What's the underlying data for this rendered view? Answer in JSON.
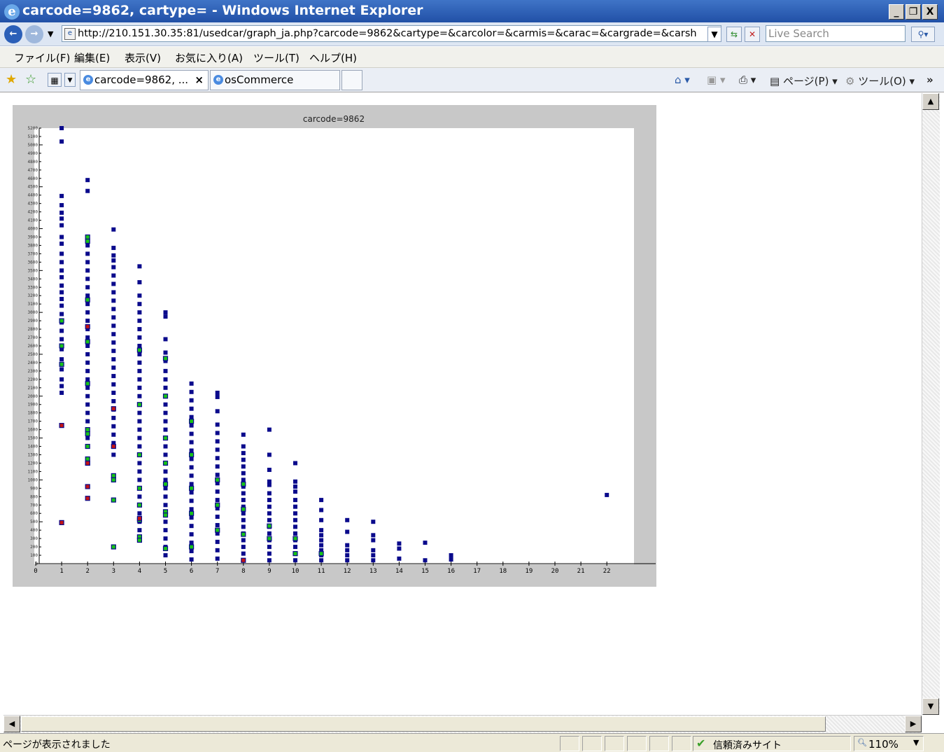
{
  "window": {
    "title": "carcode=9862, cartype= - Windows Internet Explorer",
    "minimize": "_",
    "restore": "&#x25A1;",
    "close": "X"
  },
  "addressbar": {
    "url": "http://210.151.30.35:81/usedcar/graph_ja.php?carcode=9862&cartype=&carcolor=&carmis=&carac=&cargrade=&carsh",
    "search_placeholder": "Live Search"
  },
  "menu": {
    "items": [
      "ファイル(F)",
      "編集(E)",
      "表示(V)",
      "お気に入り(A)",
      "ツール(T)",
      "ヘルプ(H)"
    ]
  },
  "tabs": [
    {
      "label": "carcode=9862, ..."
    },
    {
      "label": "osCommerce"
    }
  ],
  "commandbar": {
    "page_label": "ページ(P)",
    "tools_label": "ツール(O)"
  },
  "status": {
    "text": "ページが表示されました",
    "zone": "信頼済みサイト",
    "zoom": "110%"
  },
  "colors": {
    "point_blue": "#0a0a8c",
    "point_green": "#17c317",
    "point_red": "#c41414",
    "plot_frame": "#c8c8c8"
  },
  "chart_data": {
    "type": "scatter",
    "title": "carcode=9862",
    "xlabel": "",
    "ylabel": "",
    "xlim": [
      0,
      22
    ],
    "ylim": [
      0,
      5200
    ],
    "x_ticks": [
      "0",
      "1",
      "2",
      "3",
      "4",
      "5",
      "6",
      "7",
      "8",
      "9",
      "10",
      "11",
      "12",
      "13",
      "14",
      "15",
      "16",
      "17",
      "18",
      "19",
      "20",
      "21",
      "22"
    ],
    "series": [
      {
        "color": "blue",
        "points": [
          [
            1,
            5200
          ],
          [
            1,
            5040
          ],
          [
            1,
            4390
          ],
          [
            1,
            4280
          ],
          [
            1,
            4190
          ],
          [
            1,
            4120
          ],
          [
            1,
            4040
          ],
          [
            1,
            3900
          ],
          [
            1,
            3820
          ],
          [
            1,
            3700
          ],
          [
            1,
            3600
          ],
          [
            1,
            3500
          ],
          [
            1,
            3420
          ],
          [
            1,
            3320
          ],
          [
            1,
            3240
          ],
          [
            1,
            3160
          ],
          [
            1,
            3080
          ],
          [
            1,
            2980
          ],
          [
            1,
            2880
          ],
          [
            1,
            2780
          ],
          [
            1,
            2680
          ],
          [
            1,
            2560
          ],
          [
            1,
            2440
          ],
          [
            1,
            2320
          ],
          [
            1,
            2200
          ],
          [
            1,
            2120
          ],
          [
            1,
            2040
          ],
          [
            2,
            4580
          ],
          [
            2,
            4450
          ],
          [
            2,
            3800
          ],
          [
            2,
            3700
          ],
          [
            2,
            3600
          ],
          [
            2,
            3500
          ],
          [
            2,
            3400
          ],
          [
            2,
            3300
          ],
          [
            2,
            3200
          ],
          [
            2,
            3100
          ],
          [
            2,
            3000
          ],
          [
            2,
            2900
          ],
          [
            2,
            2800
          ],
          [
            2,
            2700
          ],
          [
            2,
            2600
          ],
          [
            2,
            2500
          ],
          [
            2,
            2400
          ],
          [
            2,
            2300
          ],
          [
            2,
            2200
          ],
          [
            2,
            2100
          ],
          [
            2,
            2000
          ],
          [
            2,
            1900
          ],
          [
            2,
            1800
          ],
          [
            2,
            1700
          ],
          [
            2,
            1600
          ],
          [
            2,
            1500
          ],
          [
            3,
            3990
          ],
          [
            3,
            3770
          ],
          [
            3,
            3680
          ],
          [
            3,
            3620
          ],
          [
            3,
            3540
          ],
          [
            3,
            3440
          ],
          [
            3,
            3340
          ],
          [
            3,
            3240
          ],
          [
            3,
            3140
          ],
          [
            3,
            3040
          ],
          [
            3,
            2940
          ],
          [
            3,
            2840
          ],
          [
            3,
            2740
          ],
          [
            3,
            2640
          ],
          [
            3,
            2540
          ],
          [
            3,
            2440
          ],
          [
            3,
            2340
          ],
          [
            3,
            2240
          ],
          [
            3,
            2140
          ],
          [
            3,
            2040
          ],
          [
            3,
            1940
          ],
          [
            3,
            1840
          ],
          [
            3,
            1740
          ],
          [
            3,
            1640
          ],
          [
            3,
            1540
          ],
          [
            3,
            1440
          ],
          [
            3,
            1300
          ],
          [
            4,
            3550
          ],
          [
            4,
            3360
          ],
          [
            4,
            3200
          ],
          [
            4,
            3100
          ],
          [
            4,
            3000
          ],
          [
            4,
            2900
          ],
          [
            4,
            2800
          ],
          [
            4,
            2700
          ],
          [
            4,
            2600
          ],
          [
            4,
            2500
          ],
          [
            4,
            2400
          ],
          [
            4,
            2300
          ],
          [
            4,
            2200
          ],
          [
            4,
            2100
          ],
          [
            4,
            2000
          ],
          [
            4,
            1900
          ],
          [
            4,
            1800
          ],
          [
            4,
            1700
          ],
          [
            4,
            1600
          ],
          [
            4,
            1500
          ],
          [
            4,
            1400
          ],
          [
            4,
            1300
          ],
          [
            4,
            1200
          ],
          [
            4,
            1100
          ],
          [
            4,
            1000
          ],
          [
            4,
            900
          ],
          [
            4,
            800
          ],
          [
            4,
            700
          ],
          [
            4,
            600
          ],
          [
            4,
            500
          ],
          [
            4,
            400
          ],
          [
            4,
            300
          ],
          [
            5,
            3000
          ],
          [
            5,
            2950
          ],
          [
            5,
            2680
          ],
          [
            5,
            2520
          ],
          [
            5,
            2420
          ],
          [
            5,
            2300
          ],
          [
            5,
            2200
          ],
          [
            5,
            2100
          ],
          [
            5,
            2000
          ],
          [
            5,
            1900
          ],
          [
            5,
            1800
          ],
          [
            5,
            1700
          ],
          [
            5,
            1600
          ],
          [
            5,
            1500
          ],
          [
            5,
            1400
          ],
          [
            5,
            1300
          ],
          [
            5,
            1200
          ],
          [
            5,
            1100
          ],
          [
            5,
            1000
          ],
          [
            5,
            900
          ],
          [
            5,
            800
          ],
          [
            5,
            700
          ],
          [
            5,
            600
          ],
          [
            5,
            500
          ],
          [
            5,
            400
          ],
          [
            5,
            300
          ],
          [
            5,
            200
          ],
          [
            5,
            100
          ],
          [
            6,
            2150
          ],
          [
            6,
            2050
          ],
          [
            6,
            1950
          ],
          [
            6,
            1850
          ],
          [
            6,
            1750
          ],
          [
            6,
            1650
          ],
          [
            6,
            1550
          ],
          [
            6,
            1450
          ],
          [
            6,
            1350
          ],
          [
            6,
            1250
          ],
          [
            6,
            1150
          ],
          [
            6,
            1050
          ],
          [
            6,
            950
          ],
          [
            6,
            850
          ],
          [
            6,
            750
          ],
          [
            6,
            650
          ],
          [
            6,
            550
          ],
          [
            6,
            450
          ],
          [
            6,
            350
          ],
          [
            6,
            250
          ],
          [
            6,
            150
          ],
          [
            6,
            50
          ],
          [
            7,
            2040
          ],
          [
            7,
            1990
          ],
          [
            7,
            1820
          ],
          [
            7,
            1660
          ],
          [
            7,
            1560
          ],
          [
            7,
            1460
          ],
          [
            7,
            1360
          ],
          [
            7,
            1260
          ],
          [
            7,
            1160
          ],
          [
            7,
            1060
          ],
          [
            7,
            960
          ],
          [
            7,
            860
          ],
          [
            7,
            760
          ],
          [
            7,
            660
          ],
          [
            7,
            560
          ],
          [
            7,
            460
          ],
          [
            7,
            360
          ],
          [
            7,
            260
          ],
          [
            7,
            160
          ],
          [
            7,
            60
          ],
          [
            8,
            1540
          ],
          [
            8,
            1400
          ],
          [
            8,
            1320
          ],
          [
            8,
            1240
          ],
          [
            8,
            1160
          ],
          [
            8,
            1080
          ],
          [
            8,
            1000
          ],
          [
            8,
            920
          ],
          [
            8,
            840
          ],
          [
            8,
            760
          ],
          [
            8,
            680
          ],
          [
            8,
            600
          ],
          [
            8,
            520
          ],
          [
            8,
            440
          ],
          [
            8,
            360
          ],
          [
            8,
            280
          ],
          [
            8,
            200
          ],
          [
            8,
            120
          ],
          [
            8,
            40
          ],
          [
            9,
            1600
          ],
          [
            9,
            1300
          ],
          [
            9,
            1120
          ],
          [
            9,
            980
          ],
          [
            9,
            940
          ],
          [
            9,
            840
          ],
          [
            9,
            760
          ],
          [
            9,
            680
          ],
          [
            9,
            600
          ],
          [
            9,
            520
          ],
          [
            9,
            440
          ],
          [
            9,
            360
          ],
          [
            9,
            280
          ],
          [
            9,
            200
          ],
          [
            9,
            120
          ],
          [
            9,
            40
          ],
          [
            10,
            1200
          ],
          [
            10,
            980
          ],
          [
            10,
            920
          ],
          [
            10,
            860
          ],
          [
            10,
            760
          ],
          [
            10,
            680
          ],
          [
            10,
            600
          ],
          [
            10,
            520
          ],
          [
            10,
            440
          ],
          [
            10,
            360
          ],
          [
            10,
            280
          ],
          [
            10,
            200
          ],
          [
            10,
            120
          ],
          [
            10,
            40
          ],
          [
            11,
            760
          ],
          [
            11,
            640
          ],
          [
            11,
            520
          ],
          [
            11,
            400
          ],
          [
            11,
            340
          ],
          [
            11,
            280
          ],
          [
            11,
            220
          ],
          [
            11,
            160
          ],
          [
            11,
            100
          ],
          [
            11,
            40
          ],
          [
            12,
            520
          ],
          [
            12,
            380
          ],
          [
            12,
            220
          ],
          [
            12,
            160
          ],
          [
            12,
            100
          ],
          [
            12,
            40
          ],
          [
            13,
            500
          ],
          [
            13,
            340
          ],
          [
            13,
            280
          ],
          [
            13,
            160
          ],
          [
            13,
            100
          ],
          [
            13,
            40
          ],
          [
            14,
            240
          ],
          [
            14,
            180
          ],
          [
            14,
            60
          ],
          [
            15,
            250
          ],
          [
            15,
            40
          ],
          [
            16,
            100
          ],
          [
            16,
            50
          ],
          [
            22,
            820
          ]
        ]
      },
      {
        "color": "green",
        "points": [
          [
            1,
            2900
          ],
          [
            1,
            2600
          ],
          [
            1,
            2380
          ],
          [
            2,
            3900
          ],
          [
            2,
            3850
          ],
          [
            2,
            3150
          ],
          [
            2,
            2650
          ],
          [
            2,
            2150
          ],
          [
            2,
            1600
          ],
          [
            2,
            1550
          ],
          [
            2,
            1400
          ],
          [
            2,
            1250
          ],
          [
            2,
            1200
          ],
          [
            3,
            1050
          ],
          [
            3,
            1000
          ],
          [
            3,
            760
          ],
          [
            3,
            200
          ],
          [
            4,
            2550
          ],
          [
            4,
            1900
          ],
          [
            4,
            1300
          ],
          [
            4,
            900
          ],
          [
            4,
            700
          ],
          [
            4,
            520
          ],
          [
            4,
            320
          ],
          [
            4,
            280
          ],
          [
            5,
            2450
          ],
          [
            5,
            2000
          ],
          [
            5,
            1500
          ],
          [
            5,
            1200
          ],
          [
            5,
            950
          ],
          [
            5,
            620
          ],
          [
            5,
            580
          ],
          [
            5,
            180
          ],
          [
            6,
            1700
          ],
          [
            6,
            1300
          ],
          [
            6,
            900
          ],
          [
            6,
            600
          ],
          [
            6,
            200
          ],
          [
            7,
            1000
          ],
          [
            7,
            700
          ],
          [
            7,
            400
          ],
          [
            8,
            950
          ],
          [
            8,
            650
          ],
          [
            8,
            350
          ],
          [
            9,
            450
          ],
          [
            9,
            300
          ],
          [
            10,
            300
          ],
          [
            10,
            120
          ],
          [
            11,
            120
          ]
        ]
      },
      {
        "color": "red",
        "points": [
          [
            1,
            1650
          ],
          [
            1,
            490
          ],
          [
            2,
            2830
          ],
          [
            2,
            1200
          ],
          [
            2,
            920
          ],
          [
            2,
            780
          ],
          [
            3,
            1850
          ],
          [
            3,
            1400
          ],
          [
            4,
            540
          ],
          [
            8,
            40
          ]
        ]
      }
    ]
  }
}
